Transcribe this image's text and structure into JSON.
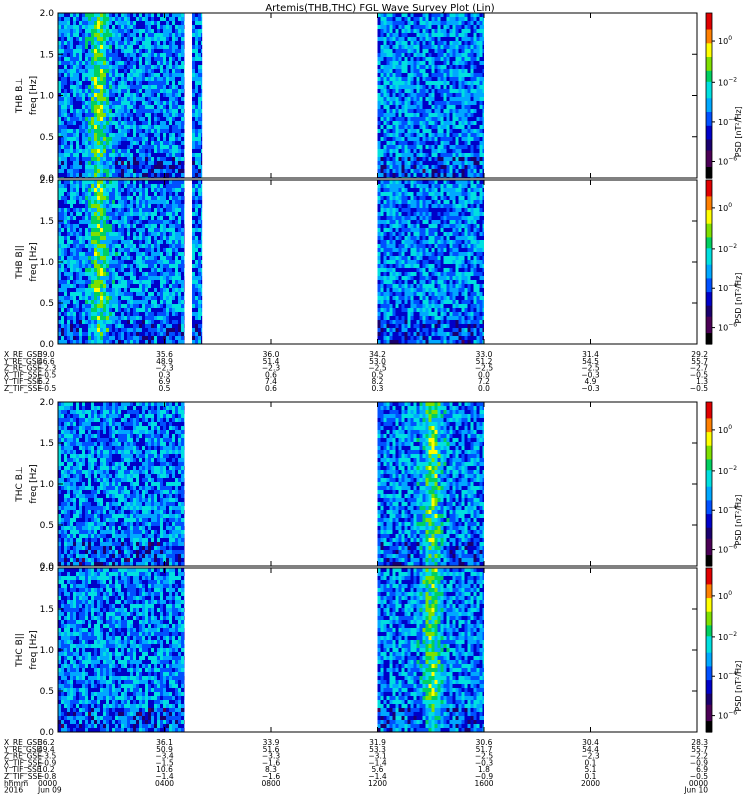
{
  "title": "Artemis(THB,THC) FGL Wave Survey Plot (Lin)",
  "colorbar": {
    "label": "PSD [nT²/Hz]",
    "ticks": [
      {
        "base": "10",
        "exp": "0"
      },
      {
        "base": "10",
        "exp": "−2"
      },
      {
        "base": "10",
        "exp": "−4"
      },
      {
        "base": "10",
        "exp": "−6"
      }
    ]
  },
  "chart_data": [
    {
      "type": "heatmap",
      "name": "THB B⊥",
      "ylabel": "THB B⊥",
      "yunit": "freq [Hz]",
      "ylim": [
        0,
        2.0
      ],
      "yticks": [
        "2.0",
        "1.5",
        "1.0",
        "0.5",
        "0.0"
      ],
      "data_intervals_hhmm": [
        [
          "0000",
          "0445"
        ],
        [
          "0502",
          "0525"
        ],
        [
          "1200",
          "1600"
        ]
      ],
      "enhancement": {
        "time_hhmm": "0130",
        "freq_hz": [
          0.2,
          2.0
        ]
      }
    },
    {
      "type": "heatmap",
      "name": "THB B||",
      "ylabel": "THB B||",
      "yunit": "freq [Hz]",
      "ylim": [
        0,
        2.0
      ],
      "yticks": [
        "2.0",
        "1.5",
        "1.0",
        "0.5",
        "0.0"
      ],
      "data_intervals_hhmm": [
        [
          "0000",
          "0445"
        ],
        [
          "0502",
          "0525"
        ],
        [
          "1200",
          "1600"
        ]
      ],
      "enhancement": {
        "time_hhmm": "0130",
        "freq_hz": [
          0.2,
          2.0
        ]
      }
    },
    {
      "type": "heatmap",
      "name": "THC B⊥",
      "ylabel": "THC B⊥",
      "yunit": "freq [Hz]",
      "ylim": [
        0,
        2.0
      ],
      "yticks": [
        "2.0",
        "1.5",
        "1.0",
        "0.5",
        "0.0"
      ],
      "data_intervals_hhmm": [
        [
          "0000",
          "0445"
        ],
        [
          "1200",
          "1600"
        ]
      ],
      "enhancement": {
        "time_hhmm": "1400",
        "freq_hz": [
          0.3,
          2.0
        ]
      }
    },
    {
      "type": "heatmap",
      "name": "THC B||",
      "ylabel": "THC B||",
      "yunit": "freq [Hz]",
      "ylim": [
        0,
        2.0
      ],
      "yticks": [
        "2.0",
        "1.5",
        "1.0",
        "0.5",
        "0.0"
      ],
      "data_intervals_hhmm": [
        [
          "0000",
          "0445"
        ],
        [
          "1200",
          "1600"
        ]
      ],
      "enhancement": {
        "time_hhmm": "1400",
        "freq_hz": [
          0.3,
          2.0
        ]
      }
    }
  ],
  "ephemeris_thb": {
    "rows": [
      {
        "label": "X_RE_GSE",
        "values": [
          "39.0",
          "35.6",
          "36.0",
          "34.2",
          "33.0",
          "31.4",
          "29.2"
        ]
      },
      {
        "label": "Y_RE_GSE",
        "values": [
          "46.6",
          "48.9",
          "51.4",
          "53.0",
          "51.2",
          "54.5",
          "55.7"
        ]
      },
      {
        "label": "Z_RE_GSE",
        "values": [
          "−2.3",
          "−2.3",
          "−2.3",
          "−2.5",
          "−2.5",
          "−2.5",
          "−2.7"
        ]
      },
      {
        "label": "X_TIF_SSE",
        "values": [
          "−0.5",
          "0.3",
          "0.6",
          "0.5",
          "0.0",
          "−0.3",
          "−0.5"
        ]
      },
      {
        "label": "Y_TIF_SSE",
        "values": [
          "6.2",
          "6.9",
          "7.4",
          "8.2",
          "7.2",
          "4.9",
          "1.3"
        ]
      },
      {
        "label": "Z_TIF_SSE",
        "values": [
          "−0.5",
          "0.5",
          "0.6",
          "0.3",
          "0.0",
          "−0.3",
          "−0.5"
        ]
      }
    ]
  },
  "ephemeris_thc": {
    "rows": [
      {
        "label": "X_RE_GSE",
        "values": [
          "36.2",
          "36.1",
          "33.9",
          "31.9",
          "30.6",
          "30.4",
          "28.3"
        ]
      },
      {
        "label": "Y_RE_GSE",
        "values": [
          "49.4",
          "50.9",
          "51.6",
          "53.3",
          "51.7",
          "54.4",
          "55.7"
        ]
      },
      {
        "label": "Z_RE_GSE",
        "values": [
          "−3.5",
          "−3.4",
          "−3.3",
          "−3.1",
          "−2.5",
          "−2.3",
          "−2.2"
        ]
      },
      {
        "label": "X_TIF_SSE",
        "values": [
          "−0.9",
          "−1.5",
          "−1.6",
          "−1.4",
          "−0.3",
          "0.1",
          "−0.9"
        ]
      },
      {
        "label": "Y_TIF_SSE",
        "values": [
          "10.2",
          "10.6",
          "8.3",
          "5.6",
          "1.8",
          "5.1",
          "6.9"
        ]
      },
      {
        "label": "Z_TIF_SSE",
        "values": [
          "−0.8",
          "−1.4",
          "−1.6",
          "−1.4",
          "−0.9",
          "0.1",
          "−0.5"
        ]
      }
    ],
    "time_row": {
      "label": "hhmm",
      "values": [
        "0000",
        "0400",
        "0800",
        "1200",
        "1600",
        "2000",
        "0000"
      ]
    },
    "date_row": {
      "label": "2016",
      "values": [
        "Jun 09",
        "",
        "",
        "",
        "",
        "",
        "Jun 10"
      ]
    }
  },
  "colors": {
    "background": "#ffffff",
    "frame": "#000000",
    "colormap": [
      "#000000",
      "#4b0055",
      "#1a006e",
      "#0000c8",
      "#0050ff",
      "#00a8ff",
      "#00e0e0",
      "#00d060",
      "#7fe000",
      "#ffff00",
      "#ff8000",
      "#e00000"
    ]
  }
}
